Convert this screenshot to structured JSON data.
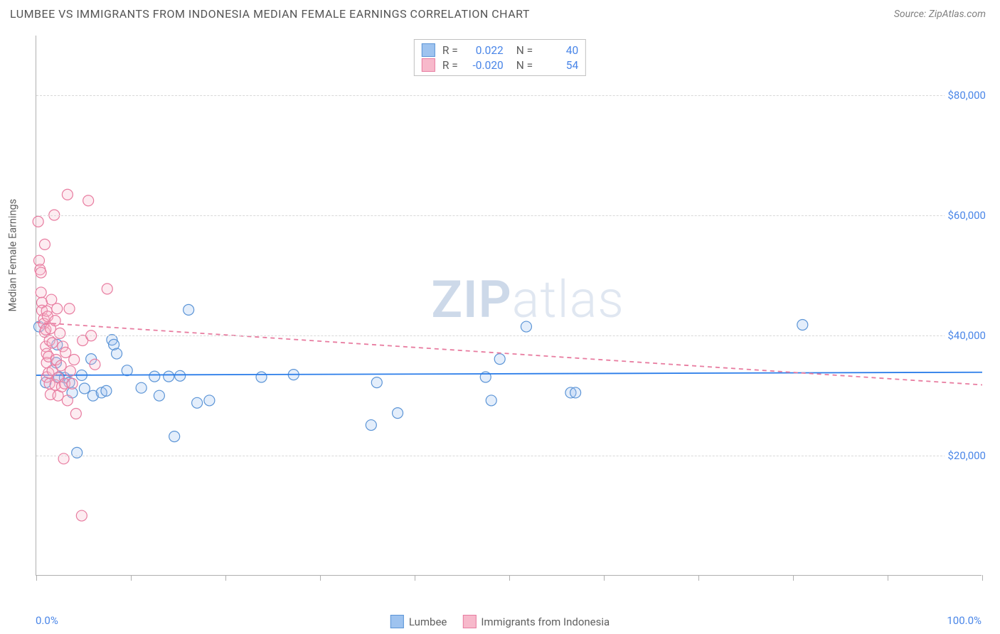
{
  "header": {
    "title": "LUMBEE VS IMMIGRANTS FROM INDONESIA MEDIAN FEMALE EARNINGS CORRELATION CHART",
    "source_prefix": "Source: ",
    "source_name": "ZipAtlas.com"
  },
  "watermark": {
    "part1": "ZIP",
    "part2": "atlas"
  },
  "chart": {
    "type": "scatter",
    "y_axis_title": "Median Female Earnings",
    "xlim": [
      0,
      100
    ],
    "ylim": [
      0,
      90000
    ],
    "x_tick_positions": [
      0,
      10,
      20,
      30,
      40,
      50,
      60,
      70,
      80,
      90,
      100
    ],
    "y_gridlines": [
      {
        "value": 20000,
        "label": "$20,000"
      },
      {
        "value": 40000,
        "label": "$40,000"
      },
      {
        "value": 60000,
        "label": "$60,000"
      },
      {
        "value": 80000,
        "label": "$80,000"
      }
    ],
    "x_start_label": "0.0%",
    "x_end_label": "100.0%",
    "background_color": "#ffffff",
    "grid_color": "#d8d8d8",
    "axis_color": "#b0b0b0",
    "tick_label_color": "#4a86e8",
    "marker_radius": 7.5,
    "marker_stroke_width": 1.2,
    "marker_fill_opacity": 0.28,
    "trendline_width": 1.8,
    "series": [
      {
        "name": "Lumbee",
        "fill": "#9ec3ef",
        "stroke": "#5b94d6",
        "trend_color": "#2b7de9",
        "trend_dashed": false,
        "R_label": "R =",
        "R": "0.022",
        "N_label": "N =",
        "N": "40",
        "trend": {
          "x1": 0,
          "y1": 33400,
          "x2": 100,
          "y2": 33900
        },
        "points": [
          {
            "x": 0.3,
            "y": 41500
          },
          {
            "x": 1.0,
            "y": 32200
          },
          {
            "x": 2.1,
            "y": 35500
          },
          {
            "x": 2.2,
            "y": 38500
          },
          {
            "x": 2.4,
            "y": 33100
          },
          {
            "x": 3.0,
            "y": 33000
          },
          {
            "x": 3.5,
            "y": 32200
          },
          {
            "x": 3.8,
            "y": 30500
          },
          {
            "x": 4.3,
            "y": 20500
          },
          {
            "x": 4.8,
            "y": 33400
          },
          {
            "x": 5.1,
            "y": 31200
          },
          {
            "x": 5.8,
            "y": 36100
          },
          {
            "x": 6.0,
            "y": 30000
          },
          {
            "x": 6.9,
            "y": 30500
          },
          {
            "x": 7.4,
            "y": 30800
          },
          {
            "x": 8.0,
            "y": 39300
          },
          {
            "x": 8.2,
            "y": 38500
          },
          {
            "x": 8.5,
            "y": 37000
          },
          {
            "x": 9.6,
            "y": 34200
          },
          {
            "x": 11.1,
            "y": 31300
          },
          {
            "x": 12.5,
            "y": 33200
          },
          {
            "x": 13.0,
            "y": 30000
          },
          {
            "x": 14.0,
            "y": 33200
          },
          {
            "x": 14.6,
            "y": 23200
          },
          {
            "x": 15.2,
            "y": 33300
          },
          {
            "x": 16.1,
            "y": 44300
          },
          {
            "x": 17.0,
            "y": 28800
          },
          {
            "x": 18.3,
            "y": 29200
          },
          {
            "x": 23.8,
            "y": 33100
          },
          {
            "x": 27.2,
            "y": 33500
          },
          {
            "x": 35.4,
            "y": 25100
          },
          {
            "x": 36.0,
            "y": 32200
          },
          {
            "x": 38.2,
            "y": 27100
          },
          {
            "x": 48.1,
            "y": 29200
          },
          {
            "x": 49.0,
            "y": 36100
          },
          {
            "x": 51.8,
            "y": 41500
          },
          {
            "x": 56.5,
            "y": 30500
          },
          {
            "x": 57.0,
            "y": 30500
          },
          {
            "x": 47.5,
            "y": 33100
          },
          {
            "x": 81.0,
            "y": 41800
          }
        ]
      },
      {
        "name": "Immigrants from Indonesia",
        "fill": "#f7b9cb",
        "stroke": "#e87ca0",
        "trend_color": "#e87ca0",
        "trend_dashed": true,
        "R_label": "R =",
        "R": "-0.020",
        "N_label": "N =",
        "N": "54",
        "trend": {
          "x1": 0,
          "y1": 42200,
          "x2": 100,
          "y2": 31800
        },
        "points": [
          {
            "x": 0.2,
            "y": 59000
          },
          {
            "x": 0.3,
            "y": 52500
          },
          {
            "x": 0.4,
            "y": 51000
          },
          {
            "x": 0.5,
            "y": 50500
          },
          {
            "x": 0.5,
            "y": 47200
          },
          {
            "x": 0.6,
            "y": 45500
          },
          {
            "x": 0.6,
            "y": 44200
          },
          {
            "x": 0.8,
            "y": 42800
          },
          {
            "x": 0.8,
            "y": 42000
          },
          {
            "x": 0.9,
            "y": 55200
          },
          {
            "x": 0.9,
            "y": 40600
          },
          {
            "x": 1.0,
            "y": 41000
          },
          {
            "x": 1.0,
            "y": 38200
          },
          {
            "x": 1.1,
            "y": 44100
          },
          {
            "x": 1.1,
            "y": 37000
          },
          {
            "x": 1.1,
            "y": 35500
          },
          {
            "x": 1.1,
            "y": 33100
          },
          {
            "x": 1.2,
            "y": 43200
          },
          {
            "x": 1.3,
            "y": 36500
          },
          {
            "x": 1.3,
            "y": 33800
          },
          {
            "x": 1.4,
            "y": 39200
          },
          {
            "x": 1.4,
            "y": 32000
          },
          {
            "x": 1.5,
            "y": 41200
          },
          {
            "x": 1.5,
            "y": 30200
          },
          {
            "x": 1.6,
            "y": 46000
          },
          {
            "x": 1.7,
            "y": 38800
          },
          {
            "x": 1.7,
            "y": 34200
          },
          {
            "x": 1.9,
            "y": 60100
          },
          {
            "x": 2.0,
            "y": 42500
          },
          {
            "x": 2.0,
            "y": 31800
          },
          {
            "x": 2.1,
            "y": 36000
          },
          {
            "x": 2.2,
            "y": 44500
          },
          {
            "x": 2.3,
            "y": 30000
          },
          {
            "x": 2.3,
            "y": 33000
          },
          {
            "x": 2.5,
            "y": 40400
          },
          {
            "x": 2.6,
            "y": 35000
          },
          {
            "x": 2.7,
            "y": 31500
          },
          {
            "x": 2.8,
            "y": 38200
          },
          {
            "x": 2.9,
            "y": 19500
          },
          {
            "x": 3.0,
            "y": 32000
          },
          {
            "x": 3.1,
            "y": 37200
          },
          {
            "x": 3.3,
            "y": 29200
          },
          {
            "x": 3.3,
            "y": 63500
          },
          {
            "x": 3.5,
            "y": 44500
          },
          {
            "x": 3.6,
            "y": 34100
          },
          {
            "x": 3.8,
            "y": 32000
          },
          {
            "x": 4.0,
            "y": 36000
          },
          {
            "x": 4.2,
            "y": 27000
          },
          {
            "x": 4.8,
            "y": 10000
          },
          {
            "x": 4.9,
            "y": 39200
          },
          {
            "x": 5.5,
            "y": 62500
          },
          {
            "x": 5.8,
            "y": 40000
          },
          {
            "x": 6.2,
            "y": 35200
          },
          {
            "x": 7.5,
            "y": 47800
          }
        ]
      }
    ]
  },
  "bottom_legend": [
    {
      "label": "Lumbee",
      "fill": "#9ec3ef",
      "stroke": "#5b94d6"
    },
    {
      "label": "Immigrants from Indonesia",
      "fill": "#f7b9cb",
      "stroke": "#e87ca0"
    }
  ]
}
